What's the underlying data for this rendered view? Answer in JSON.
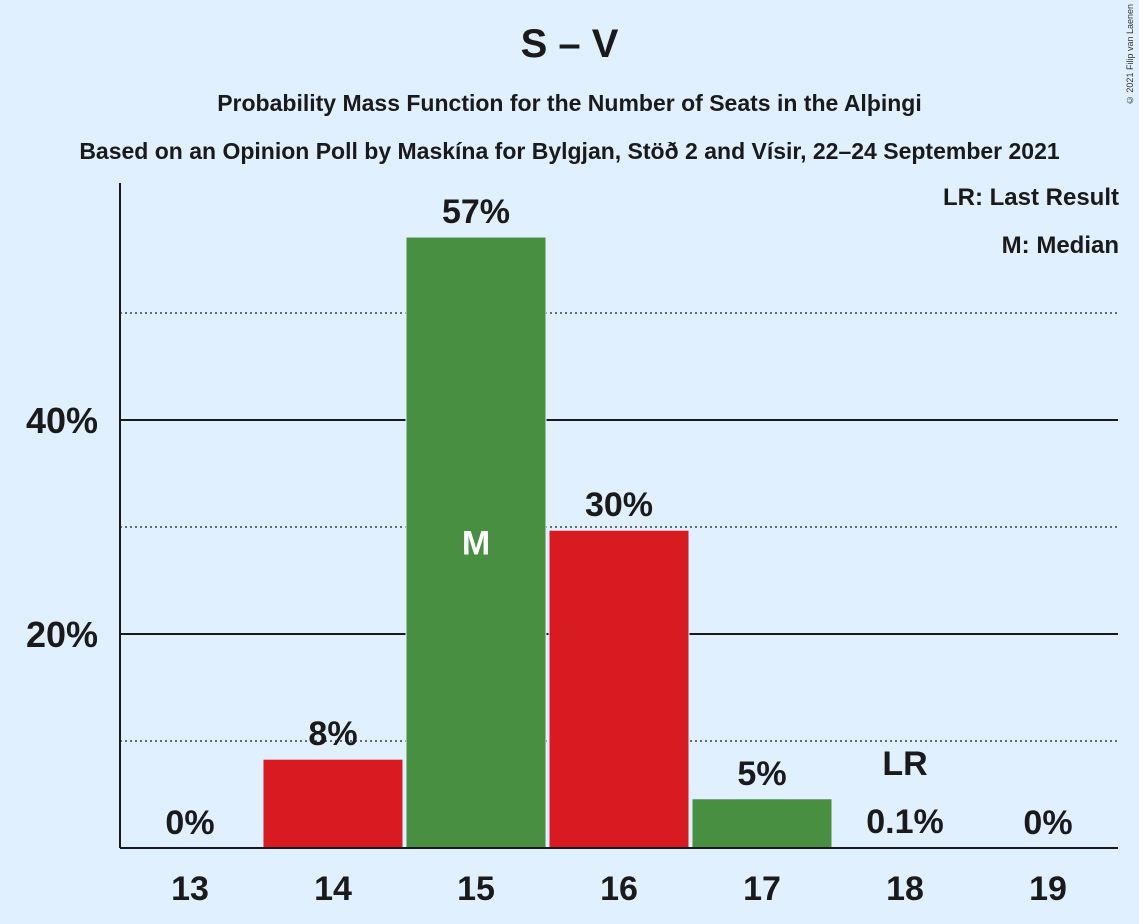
{
  "title": "S – V",
  "subtitle": "Probability Mass Function for the Number of Seats in the Alþingi",
  "subtitle2": "Based on an Opinion Poll by Maskína for Bylgjan, Stöð 2 and Vísir, 22–24 September 2021",
  "copyright": "© 2021 Filip van Laenen",
  "legend": {
    "last_result": "LR: Last Result",
    "median": "M: Median"
  },
  "colors": {
    "background": "#e1f0ff",
    "red": "#d81b20",
    "green": "#488f42"
  },
  "chart_data": {
    "type": "bar",
    "title": "S – V",
    "categories": [
      "13",
      "14",
      "15",
      "16",
      "17",
      "18",
      "19"
    ],
    "values": [
      0,
      8.3,
      57.1,
      29.7,
      4.6,
      0.1,
      0
    ],
    "value_labels": [
      "0%",
      "8%",
      "57%",
      "30%",
      "5%",
      "0.1%",
      "0%"
    ],
    "bar_colors": [
      "red",
      "red",
      "green",
      "red",
      "green",
      "red",
      "green"
    ],
    "ylim": [
      0,
      62
    ],
    "yticks": [
      {
        "value": 20,
        "label": "20%"
      },
      {
        "value": 40,
        "label": "40%"
      }
    ],
    "minor_gridlines": [
      10,
      30,
      50
    ],
    "median_category": "15",
    "median_label": "M",
    "last_result_category": "18",
    "last_result_label": "LR",
    "grid": true,
    "legend_position": "top-right"
  }
}
